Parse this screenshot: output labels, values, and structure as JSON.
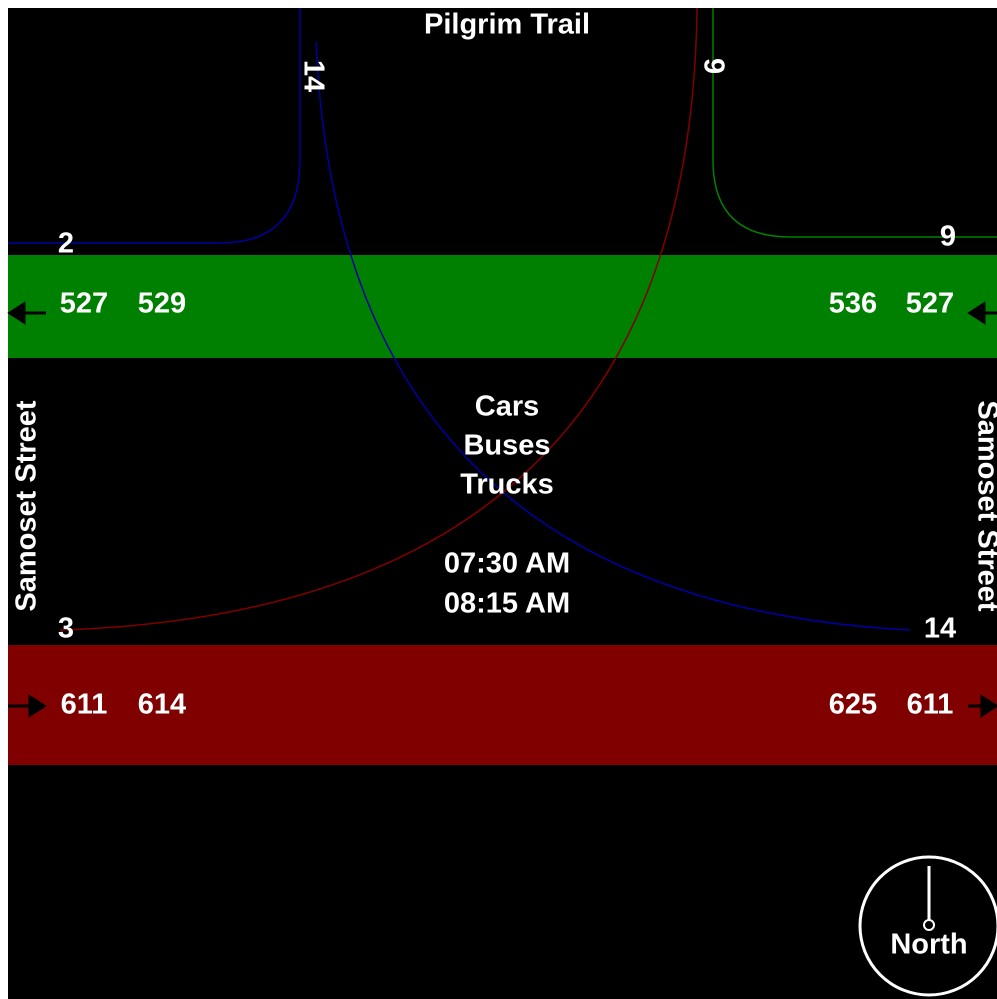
{
  "north_road": "Pilgrim Trail",
  "west_road": "Samoset Street",
  "east_road": "Samoset Street",
  "turns": {
    "north_left": 14,
    "north_right": 9,
    "west_top": 2,
    "east_top": 9,
    "west_bottom": 3,
    "east_bottom": 14
  },
  "westbound": {
    "west": [
      527,
      529
    ],
    "east": [
      536,
      527
    ]
  },
  "eastbound": {
    "west": [
      611,
      614
    ],
    "east": [
      625,
      611
    ]
  },
  "vehicle_types": [
    "Cars",
    "Buses",
    "Trucks"
  ],
  "times": [
    "07:30 AM",
    "08:15 AM"
  ],
  "compass": "North"
}
